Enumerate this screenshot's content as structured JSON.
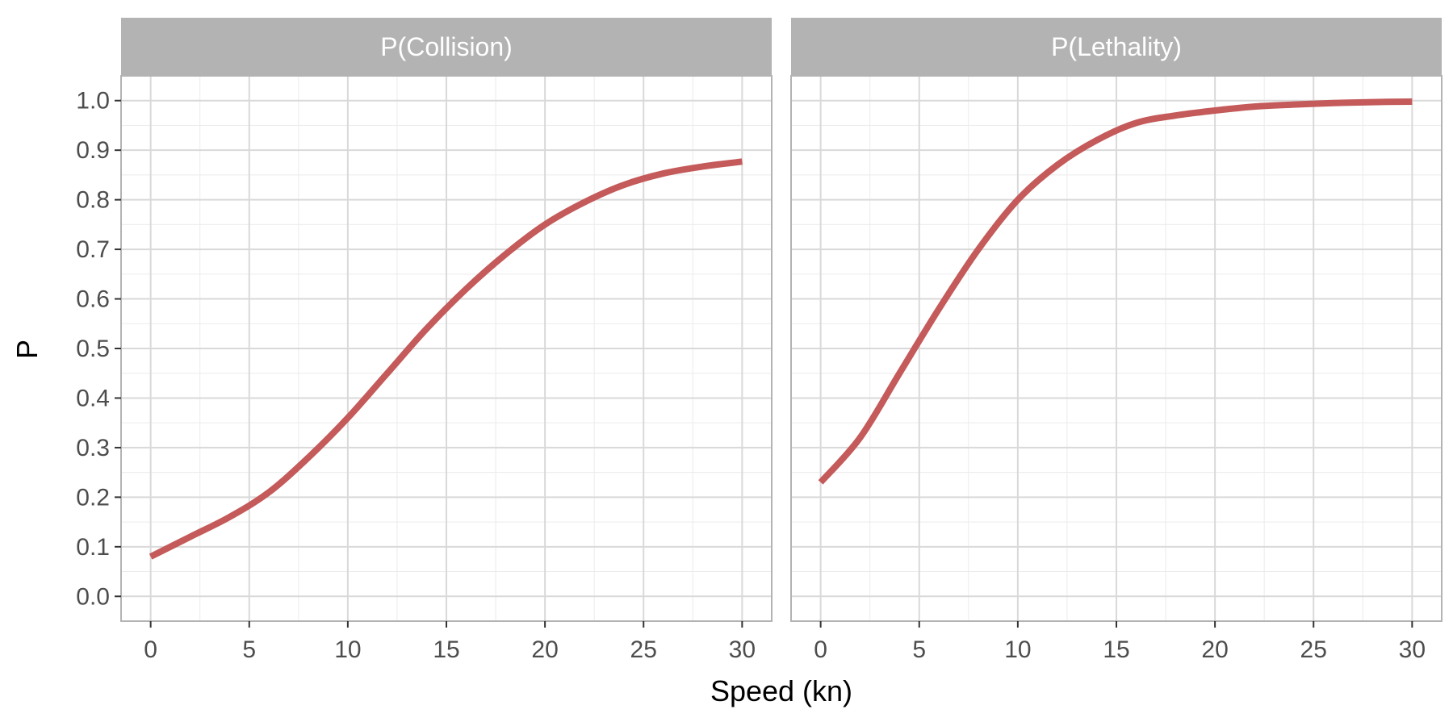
{
  "chart_data": {
    "type": "line",
    "xlabel": "Speed (kn)",
    "ylabel": "P",
    "xlim": [
      -1.5,
      31.5
    ],
    "ylim": [
      -0.05,
      1.05
    ],
    "x_ticks": [
      0,
      5,
      10,
      15,
      20,
      25,
      30
    ],
    "x_tick_labels": [
      "0",
      "5",
      "10",
      "15",
      "20",
      "25",
      "30"
    ],
    "y_ticks": [
      0.0,
      0.1,
      0.2,
      0.3,
      0.4,
      0.5,
      0.6,
      0.7,
      0.8,
      0.9,
      1.0
    ],
    "y_tick_labels": [
      "0.0",
      "0.1",
      "0.2",
      "0.3",
      "0.4",
      "0.5",
      "0.6",
      "0.7",
      "0.8",
      "0.9",
      "1.0"
    ],
    "grid": true,
    "line_color": "#c45a5a",
    "strip_color": "#b3b3b3",
    "panels": [
      {
        "title": "P(Collision)",
        "series": [
          {
            "x": [
              0,
              2,
              4,
              6,
              8,
              10,
              12,
              14,
              16,
              18,
              20,
              22,
              24,
              26,
              28,
              30
            ],
            "values": [
              0.08,
              0.12,
              0.16,
              0.21,
              0.28,
              0.36,
              0.45,
              0.54,
              0.62,
              0.69,
              0.75,
              0.795,
              0.83,
              0.853,
              0.867,
              0.877
            ]
          }
        ]
      },
      {
        "title": "P(Lethality)",
        "series": [
          {
            "x": [
              0,
              2,
              4,
              6,
              8,
              10,
              12,
              14,
              16,
              18,
              20,
              22,
              24,
              26,
              28,
              30
            ],
            "values": [
              0.23,
              0.32,
              0.45,
              0.58,
              0.7,
              0.8,
              0.87,
              0.92,
              0.955,
              0.97,
              0.98,
              0.988,
              0.992,
              0.995,
              0.997,
              0.998
            ]
          }
        ]
      }
    ]
  }
}
